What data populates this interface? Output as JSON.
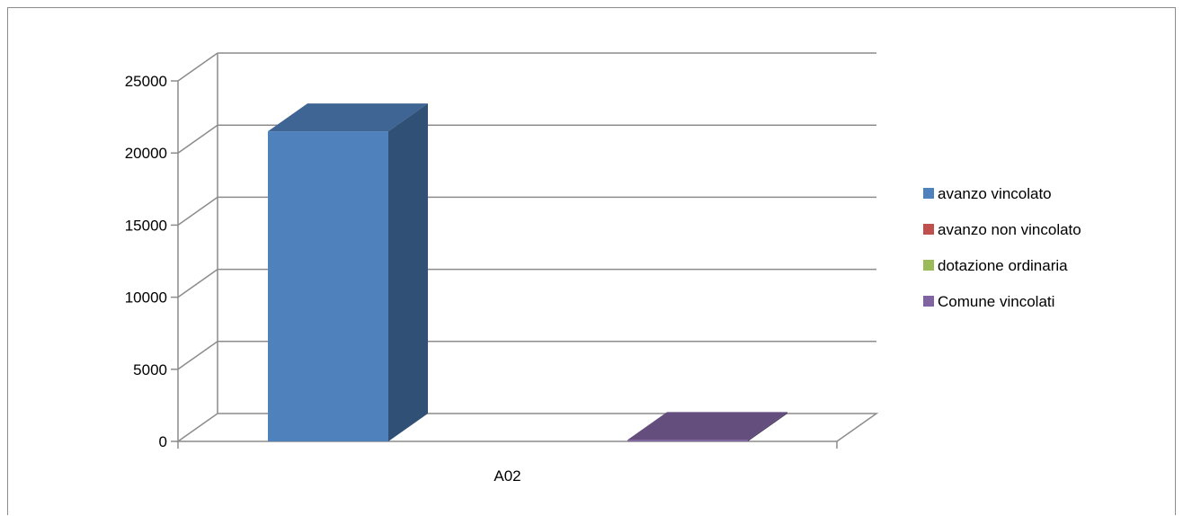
{
  "chart_data": {
    "type": "bar",
    "categories": [
      "A02"
    ],
    "series": [
      {
        "name": "avanzo vincolato",
        "values": [
          21500
        ],
        "color": "#4F81BD"
      },
      {
        "name": "avanzo non vincolato",
        "values": [
          0
        ],
        "color": "#C0504D"
      },
      {
        "name": "dotazione ordinaria",
        "values": [
          0
        ],
        "color": "#9BBB59"
      },
      {
        "name": "Comune vincolati",
        "values": [
          100
        ],
        "color": "#8064A2"
      }
    ],
    "yticks": [
      "0",
      "5000",
      "10000",
      "15000",
      "20000",
      "25000"
    ],
    "ylim": [
      0,
      25000
    ],
    "grid": true,
    "legend": "right",
    "style": "3d-column"
  }
}
